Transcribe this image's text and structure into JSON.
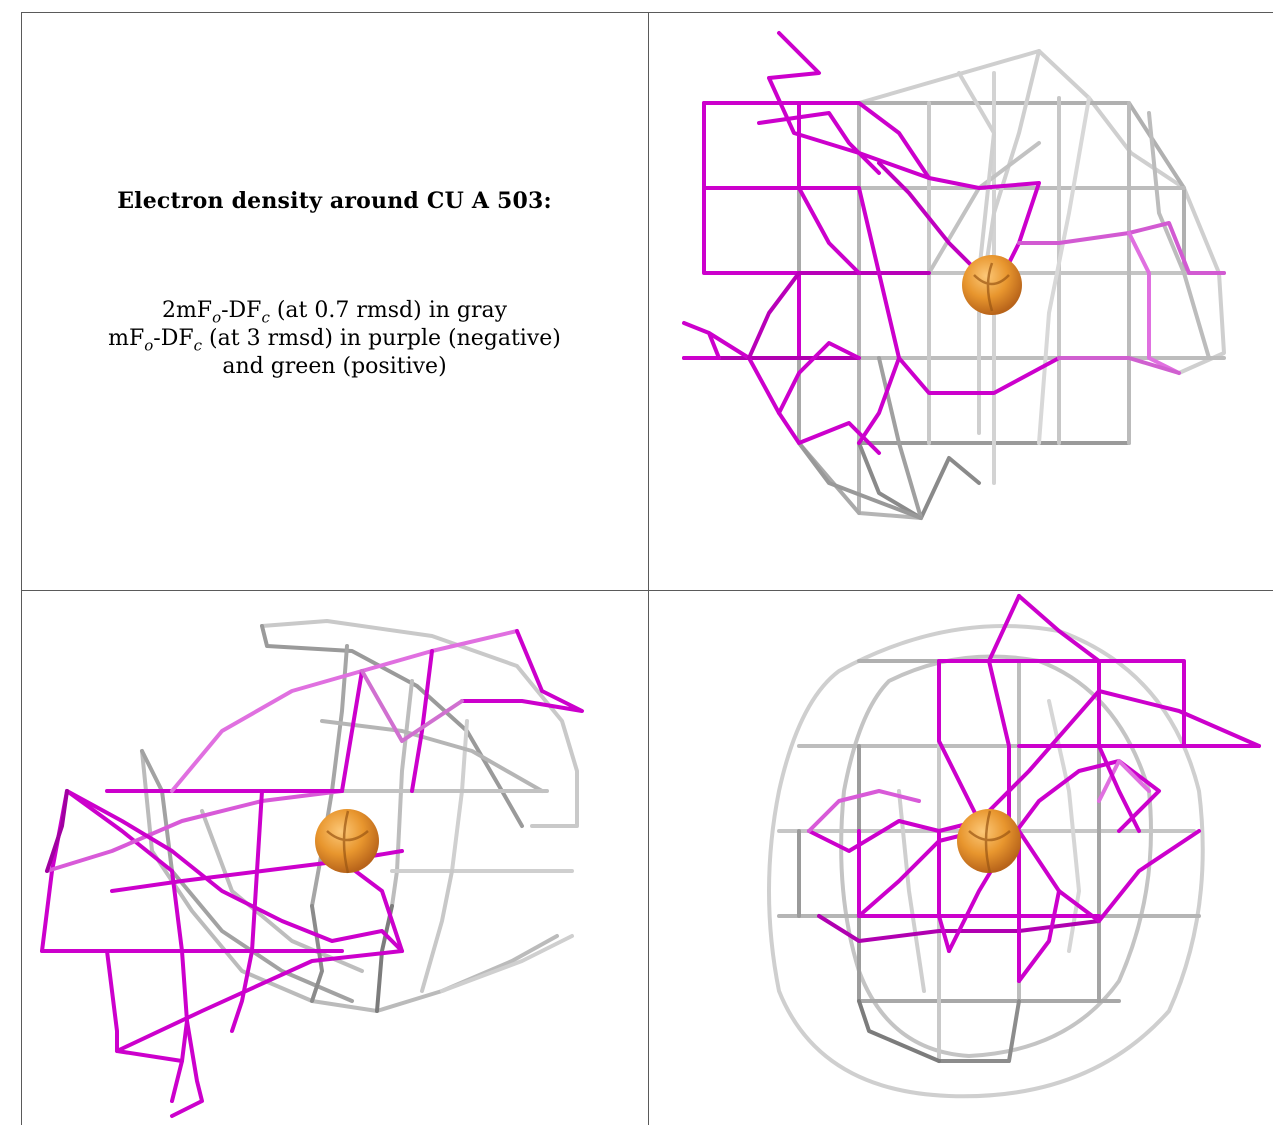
{
  "caption": {
    "title": "Electron density around CU A 503:",
    "line1_prefix": "2mF",
    "line1_sub1": "o",
    "line1_mid": "-DF",
    "line1_sub2": "c",
    "line1_suffix": " (at 0.7 rmsd) in gray",
    "line2_prefix": "mF",
    "line2_sub1": "o",
    "line2_mid": "-DF",
    "line2_sub2": "c",
    "line2_suffix": " (at 3 rmsd) in purple (negative)",
    "line3": "and green (positive)"
  },
  "colors": {
    "density_2fofc": "#c8c8c8",
    "density_2fofc_dark": "#6e6e6e",
    "density_fofc_negative": "#cc00cc",
    "density_fofc_negative_light": "#e070e0",
    "density_fofc_positive": "#00aa00",
    "copper_atom": "#e8962e",
    "border": "#5a5a5a"
  },
  "panels": [
    {
      "view": "view-1",
      "atom": "copper-atom"
    },
    {
      "view": "view-2",
      "atom": "copper-atom"
    },
    {
      "view": "view-3",
      "atom": "copper-atom"
    }
  ]
}
